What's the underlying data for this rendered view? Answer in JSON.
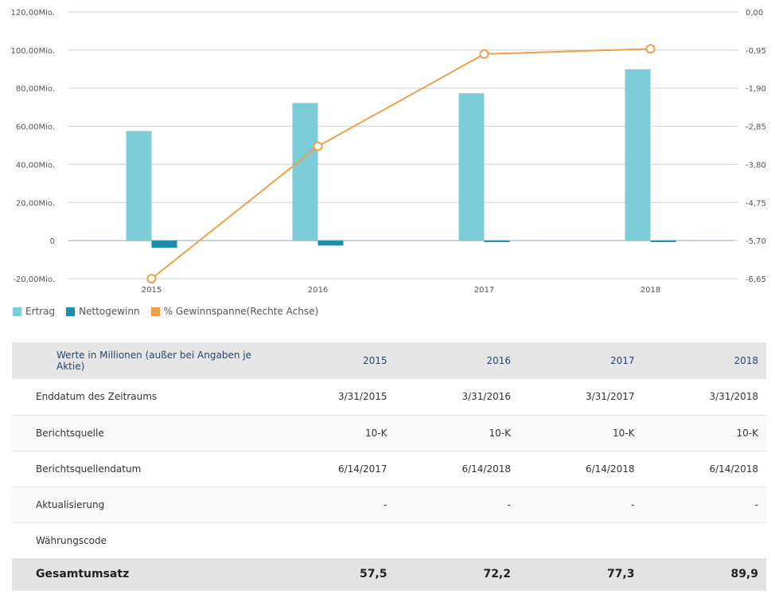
{
  "chart_data": {
    "type": "bar+line",
    "categories": [
      "2015",
      "2016",
      "2017",
      "2018"
    ],
    "series": [
      {
        "name": "Ertrag",
        "kind": "bar",
        "axis": "left",
        "color": "#7ccdd8",
        "values": [
          57.5,
          72.2,
          77.3,
          89.9
        ]
      },
      {
        "name": "Nettogewinn",
        "kind": "bar",
        "axis": "left",
        "color": "#1e8cae",
        "values": [
          -3.8,
          -2.6,
          -0.8,
          -0.8
        ]
      },
      {
        "name": "% Gewinnspanne(Rechte Achse)",
        "kind": "line",
        "axis": "right",
        "color": "#f0a04b",
        "values": [
          -6.65,
          -3.35,
          -1.05,
          -0.92
        ]
      }
    ],
    "left_axis": {
      "ylim": [
        -20,
        120
      ],
      "ticks": [
        "-20,00Mio.",
        "0",
        "20,00Mio.",
        "40,00Mio.",
        "60,00Mio.",
        "80,00Mio.",
        "100,00Mio.",
        "120,00Mio."
      ]
    },
    "right_axis": {
      "ylim": [
        -6.65,
        0
      ],
      "ticks": [
        "-6,65",
        "-5,70",
        "-4,75",
        "-3,80",
        "-2,85",
        "-1,90",
        "-0,95",
        "0,00"
      ]
    },
    "grid": true,
    "legend_position": "bottom-left"
  },
  "legend": {
    "items": [
      {
        "label": "Ertrag",
        "color": "#7ccdd8"
      },
      {
        "label": "Nettogewinn",
        "color": "#1e8cae"
      },
      {
        "label": "% Gewinnspanne(Rechte Achse)",
        "color": "#f0a04b"
      }
    ]
  },
  "table": {
    "header_label": "Werte in Millionen (außer bei Angaben je Aktie)",
    "years": [
      "2015",
      "2016",
      "2017",
      "2018"
    ],
    "rows": [
      {
        "label": "Enddatum des Zeitraums",
        "values": [
          "3/31/2015",
          "3/31/2016",
          "3/31/2017",
          "3/31/2018"
        ]
      },
      {
        "label": "Berichtsquelle",
        "values": [
          "10-K",
          "10-K",
          "10-K",
          "10-K"
        ]
      },
      {
        "label": "Berichtsquellendatum",
        "values": [
          "6/14/2017",
          "6/14/2018",
          "6/14/2018",
          "6/14/2018"
        ]
      },
      {
        "label": "Aktualisierung",
        "values": [
          "-",
          "-",
          "-",
          "-"
        ]
      },
      {
        "label": "Währungscode",
        "values": [
          "",
          "",
          "",
          ""
        ]
      }
    ],
    "total": {
      "label": "Gesamtumsatz",
      "values": [
        "57,5",
        "72,2",
        "77,3",
        "89,9"
      ]
    }
  }
}
